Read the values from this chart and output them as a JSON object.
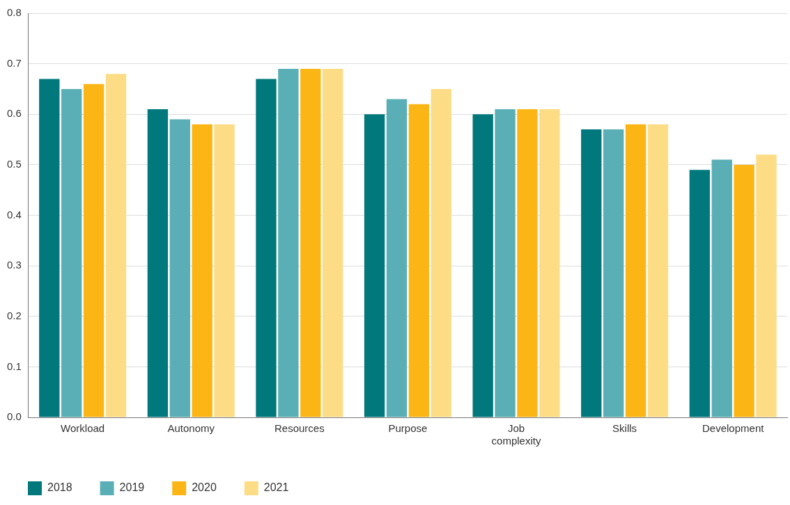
{
  "chart_data": {
    "type": "bar",
    "categories": [
      "Workload",
      "Autonomy",
      "Resources",
      "Purpose",
      "Job complexity",
      "Skills",
      "Development"
    ],
    "series": [
      {
        "name": "2018",
        "color": "#00787c",
        "values": [
          0.67,
          0.61,
          0.67,
          0.6,
          0.6,
          0.57,
          0.49
        ]
      },
      {
        "name": "2019",
        "color": "#5aafb6",
        "values": [
          0.65,
          0.59,
          0.69,
          0.63,
          0.61,
          0.57,
          0.51
        ]
      },
      {
        "name": "2020",
        "color": "#fbb616",
        "values": [
          0.66,
          0.58,
          0.69,
          0.62,
          0.61,
          0.58,
          0.5
        ]
      },
      {
        "name": "2021",
        "color": "#fddc86",
        "values": [
          0.68,
          0.58,
          0.69,
          0.65,
          0.61,
          0.58,
          0.52
        ]
      }
    ],
    "ylim": [
      0,
      0.8
    ],
    "yticks": [
      {
        "value": 0,
        "label": "0.0"
      },
      {
        "value": 0.1,
        "label": "0.1"
      },
      {
        "value": 0.2,
        "label": "0.2"
      },
      {
        "value": 0.3,
        "label": "0.3"
      },
      {
        "value": 0.4,
        "label": "0.4"
      },
      {
        "value": 0.5,
        "label": "0.5"
      },
      {
        "value": 0.6,
        "label": "0.6"
      },
      {
        "value": 0.7,
        "label": "0.7"
      },
      {
        "value": 0.8,
        "label": "0.8"
      }
    ],
    "grid": "y",
    "legend": "bottom left"
  }
}
